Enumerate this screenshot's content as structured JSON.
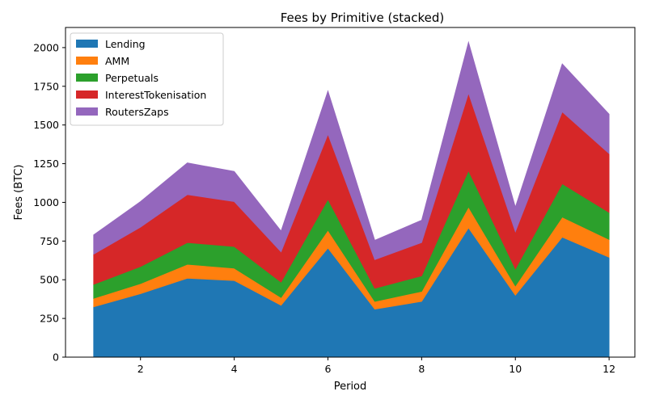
{
  "chart_data": {
    "type": "area",
    "stacked": true,
    "title": "Fees by Primitive (stacked)",
    "xlabel": "Period",
    "ylabel": "Fees (BTC)",
    "x": [
      1,
      2,
      3,
      4,
      5,
      6,
      7,
      8,
      9,
      10,
      11,
      12
    ],
    "xticks": [
      2,
      4,
      6,
      8,
      10,
      12
    ],
    "yticks": [
      0,
      250,
      500,
      750,
      1000,
      1250,
      1500,
      1750,
      2000
    ],
    "xlim": [
      0.4,
      12.55
    ],
    "ylim": [
      0,
      2130
    ],
    "legend_position": "upper-left",
    "grid": false,
    "series": [
      {
        "name": "Lending",
        "color": "#1f77b4",
        "values": [
          325,
          410,
          510,
          495,
          335,
          705,
          310,
          360,
          835,
          400,
          775,
          645
        ]
      },
      {
        "name": "AMM",
        "color": "#ff7f0e",
        "values": [
          55,
          65,
          90,
          80,
          50,
          115,
          50,
          65,
          135,
          60,
          130,
          115
        ]
      },
      {
        "name": "Perpetuals",
        "color": "#2ca02c",
        "values": [
          90,
          110,
          140,
          140,
          100,
          200,
          85,
          100,
          235,
          110,
          215,
          175
        ]
      },
      {
        "name": "InterestTokenisation",
        "color": "#d62728",
        "values": [
          195,
          255,
          310,
          290,
          195,
          420,
          185,
          215,
          500,
          240,
          465,
          380
        ]
      },
      {
        "name": "RoutersZaps",
        "color": "#9467bd",
        "values": [
          125,
          165,
          205,
          195,
          135,
          280,
          125,
          145,
          330,
          160,
          310,
          255
        ]
      }
    ]
  }
}
